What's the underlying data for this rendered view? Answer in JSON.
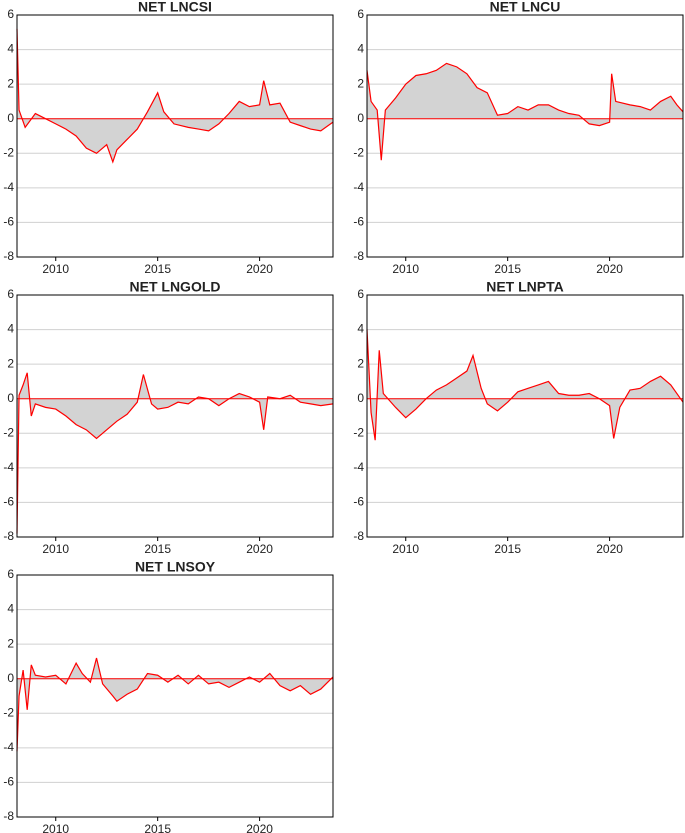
{
  "chart_data": [
    {
      "type": "area-line",
      "title": "NET LNCSI",
      "color": "#ff0000",
      "area_color": "#d3d3d3",
      "grid": true,
      "xlim": [
        2008.1,
        2023.6
      ],
      "xticks": [
        2010,
        2015,
        2020
      ],
      "ylim": [
        -8,
        6
      ],
      "yticks": [
        -8,
        -6,
        -4,
        -2,
        0,
        2,
        4,
        6
      ],
      "x": [
        2008.1,
        2008.2,
        2008.5,
        2009,
        2009.5,
        2010,
        2010.5,
        2011,
        2011.5,
        2012,
        2012.5,
        2012.8,
        2013,
        2013.5,
        2014,
        2014.5,
        2015,
        2015.3,
        2015.8,
        2016.5,
        2017,
        2017.5,
        2018,
        2018.5,
        2019,
        2019.5,
        2020,
        2020.2,
        2020.5,
        2021,
        2021.5,
        2022,
        2022.5,
        2023,
        2023.6
      ],
      "values": [
        5.2,
        0.5,
        -0.5,
        0.3,
        0,
        -0.3,
        -0.6,
        -1.0,
        -1.7,
        -2.0,
        -1.5,
        -2.5,
        -1.8,
        -1.2,
        -0.6,
        0.4,
        1.5,
        0.4,
        -0.3,
        -0.5,
        -0.6,
        -0.7,
        -0.3,
        0.3,
        1.0,
        0.7,
        0.8,
        2.2,
        0.8,
        0.9,
        -0.2,
        -0.4,
        -0.6,
        -0.7,
        -0.2
      ]
    },
    {
      "type": "area-line",
      "title": "NET LNCU",
      "color": "#ff0000",
      "area_color": "#d3d3d3",
      "grid": true,
      "xlim": [
        2008.1,
        2023.6
      ],
      "xticks": [
        2010,
        2015,
        2020
      ],
      "ylim": [
        -8,
        6
      ],
      "yticks": [
        -8,
        -6,
        -4,
        -2,
        0,
        2,
        4,
        6
      ],
      "x": [
        2008.1,
        2008.3,
        2008.6,
        2008.8,
        2009,
        2009.5,
        2010,
        2010.5,
        2011,
        2011.5,
        2012,
        2012.5,
        2013,
        2013.5,
        2014,
        2014.5,
        2015,
        2015.5,
        2016,
        2016.5,
        2017,
        2017.5,
        2018,
        2018.5,
        2019,
        2019.5,
        2020,
        2020.1,
        2020.3,
        2021,
        2021.5,
        2022,
        2022.5,
        2023,
        2023.3,
        2023.6
      ],
      "values": [
        2.8,
        1.0,
        0.5,
        -2.4,
        0.5,
        1.2,
        2.0,
        2.5,
        2.6,
        2.8,
        3.2,
        3.0,
        2.6,
        1.8,
        1.5,
        0.2,
        0.3,
        0.7,
        0.5,
        0.8,
        0.8,
        0.5,
        0.3,
        0.2,
        -0.3,
        -0.4,
        -0.2,
        2.6,
        1.0,
        0.8,
        0.7,
        0.5,
        1.0,
        1.3,
        0.8,
        0.4
      ]
    },
    {
      "type": "area-line",
      "title": "NET LNGOLD",
      "color": "#ff0000",
      "area_color": "#d3d3d3",
      "grid": true,
      "xlim": [
        2008.1,
        2023.6
      ],
      "xticks": [
        2010,
        2015,
        2020
      ],
      "ylim": [
        -8,
        6
      ],
      "yticks": [
        -8,
        -6,
        -4,
        -2,
        0,
        2,
        4,
        6
      ],
      "x": [
        2008.1,
        2008.2,
        2008.4,
        2008.6,
        2008.8,
        2009,
        2009.5,
        2010,
        2010.5,
        2011,
        2011.5,
        2012,
        2012.5,
        2013,
        2013.5,
        2014,
        2014.3,
        2014.7,
        2015,
        2015.5,
        2016,
        2016.5,
        2017,
        2017.5,
        2018,
        2018.5,
        2019,
        2019.5,
        2020,
        2020.2,
        2020.4,
        2021,
        2021.5,
        2022,
        2022.5,
        2023,
        2023.6
      ],
      "values": [
        -7.8,
        0.2,
        0.8,
        1.5,
        -1.0,
        -0.3,
        -0.5,
        -0.6,
        -1.0,
        -1.5,
        -1.8,
        -2.3,
        -1.8,
        -1.3,
        -0.9,
        -0.2,
        1.4,
        -0.3,
        -0.6,
        -0.5,
        -0.2,
        -0.3,
        0.1,
        0,
        -0.4,
        0,
        0.3,
        0.1,
        -0.2,
        -1.8,
        0.1,
        0,
        0.2,
        -0.2,
        -0.3,
        -0.4,
        -0.3
      ]
    },
    {
      "type": "area-line",
      "title": "NET LNPTA",
      "color": "#ff0000",
      "area_color": "#d3d3d3",
      "grid": true,
      "xlim": [
        2008.1,
        2023.6
      ],
      "xticks": [
        2010,
        2015,
        2020
      ],
      "ylim": [
        -8,
        6
      ],
      "yticks": [
        -8,
        -6,
        -4,
        -2,
        0,
        2,
        4,
        6
      ],
      "x": [
        2008.1,
        2008.3,
        2008.5,
        2008.7,
        2008.9,
        2009.5,
        2010,
        2010.5,
        2011,
        2011.5,
        2012,
        2012.5,
        2013,
        2013.3,
        2013.7,
        2014,
        2014.5,
        2015,
        2015.5,
        2016,
        2016.5,
        2017,
        2017.5,
        2018,
        2018.5,
        2019,
        2019.5,
        2020,
        2020.2,
        2020.5,
        2021,
        2021.5,
        2022,
        2022.5,
        2023,
        2023.6
      ],
      "values": [
        4.0,
        -0.8,
        -2.4,
        2.8,
        0.3,
        -0.5,
        -1.1,
        -0.6,
        0,
        0.5,
        0.8,
        1.2,
        1.6,
        2.5,
        0.6,
        -0.3,
        -0.7,
        -0.2,
        0.4,
        0.6,
        0.8,
        1.0,
        0.3,
        0.2,
        0.2,
        0.3,
        0,
        -0.4,
        -2.3,
        -0.5,
        0.5,
        0.6,
        1.0,
        1.3,
        0.8,
        -0.2
      ]
    },
    {
      "type": "area-line",
      "title": "NET LNSOY",
      "color": "#ff0000",
      "area_color": "#d3d3d3",
      "grid": true,
      "xlim": [
        2008.1,
        2023.6
      ],
      "xticks": [
        2010,
        2015,
        2020
      ],
      "ylim": [
        -8,
        6
      ],
      "yticks": [
        -8,
        -6,
        -4,
        -2,
        0,
        2,
        4,
        6
      ],
      "x": [
        2008.1,
        2008.2,
        2008.4,
        2008.6,
        2008.8,
        2009,
        2009.5,
        2010,
        2010.5,
        2011,
        2011.3,
        2011.7,
        2012,
        2012.3,
        2012.8,
        2013,
        2013.5,
        2014,
        2014.5,
        2015,
        2015.5,
        2016,
        2016.5,
        2017,
        2017.5,
        2018,
        2018.5,
        2019,
        2019.5,
        2020,
        2020.5,
        2021,
        2021.5,
        2022,
        2022.5,
        2023,
        2023.6
      ],
      "values": [
        -4.2,
        -1.0,
        0.5,
        -1.8,
        0.8,
        0.2,
        0.1,
        0.2,
        -0.3,
        0.9,
        0.3,
        -0.2,
        1.2,
        -0.3,
        -1.0,
        -1.3,
        -0.9,
        -0.6,
        0.3,
        0.2,
        -0.2,
        0.2,
        -0.3,
        0.2,
        -0.3,
        -0.2,
        -0.5,
        -0.2,
        0.1,
        -0.2,
        0.3,
        -0.4,
        -0.7,
        -0.4,
        -0.9,
        -0.6,
        0.1
      ]
    }
  ]
}
